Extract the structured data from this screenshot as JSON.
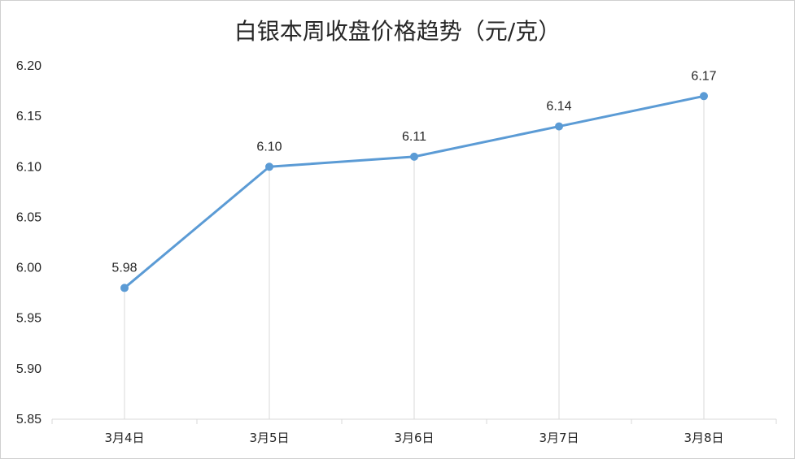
{
  "chart_data": {
    "type": "line",
    "title": "白银本周收盘价格趋势（元/克）",
    "xlabel": "",
    "ylabel": "",
    "categories": [
      "3月4日",
      "3月5日",
      "3月6日",
      "3月7日",
      "3月8日"
    ],
    "series": [
      {
        "values": [
          5.98,
          6.1,
          6.11,
          6.14,
          6.17
        ],
        "value_labels": [
          "5.98",
          "6.10",
          "6.11",
          "6.14",
          "6.17"
        ],
        "color": "#5b9bd5"
      }
    ],
    "ylim": [
      5.85,
      6.2
    ],
    "y_ticks": [
      "5.85",
      "5.90",
      "5.95",
      "6.00",
      "6.05",
      "6.10",
      "6.15",
      "6.20"
    ],
    "drop_lines": true,
    "grid": false,
    "legend": "none"
  }
}
